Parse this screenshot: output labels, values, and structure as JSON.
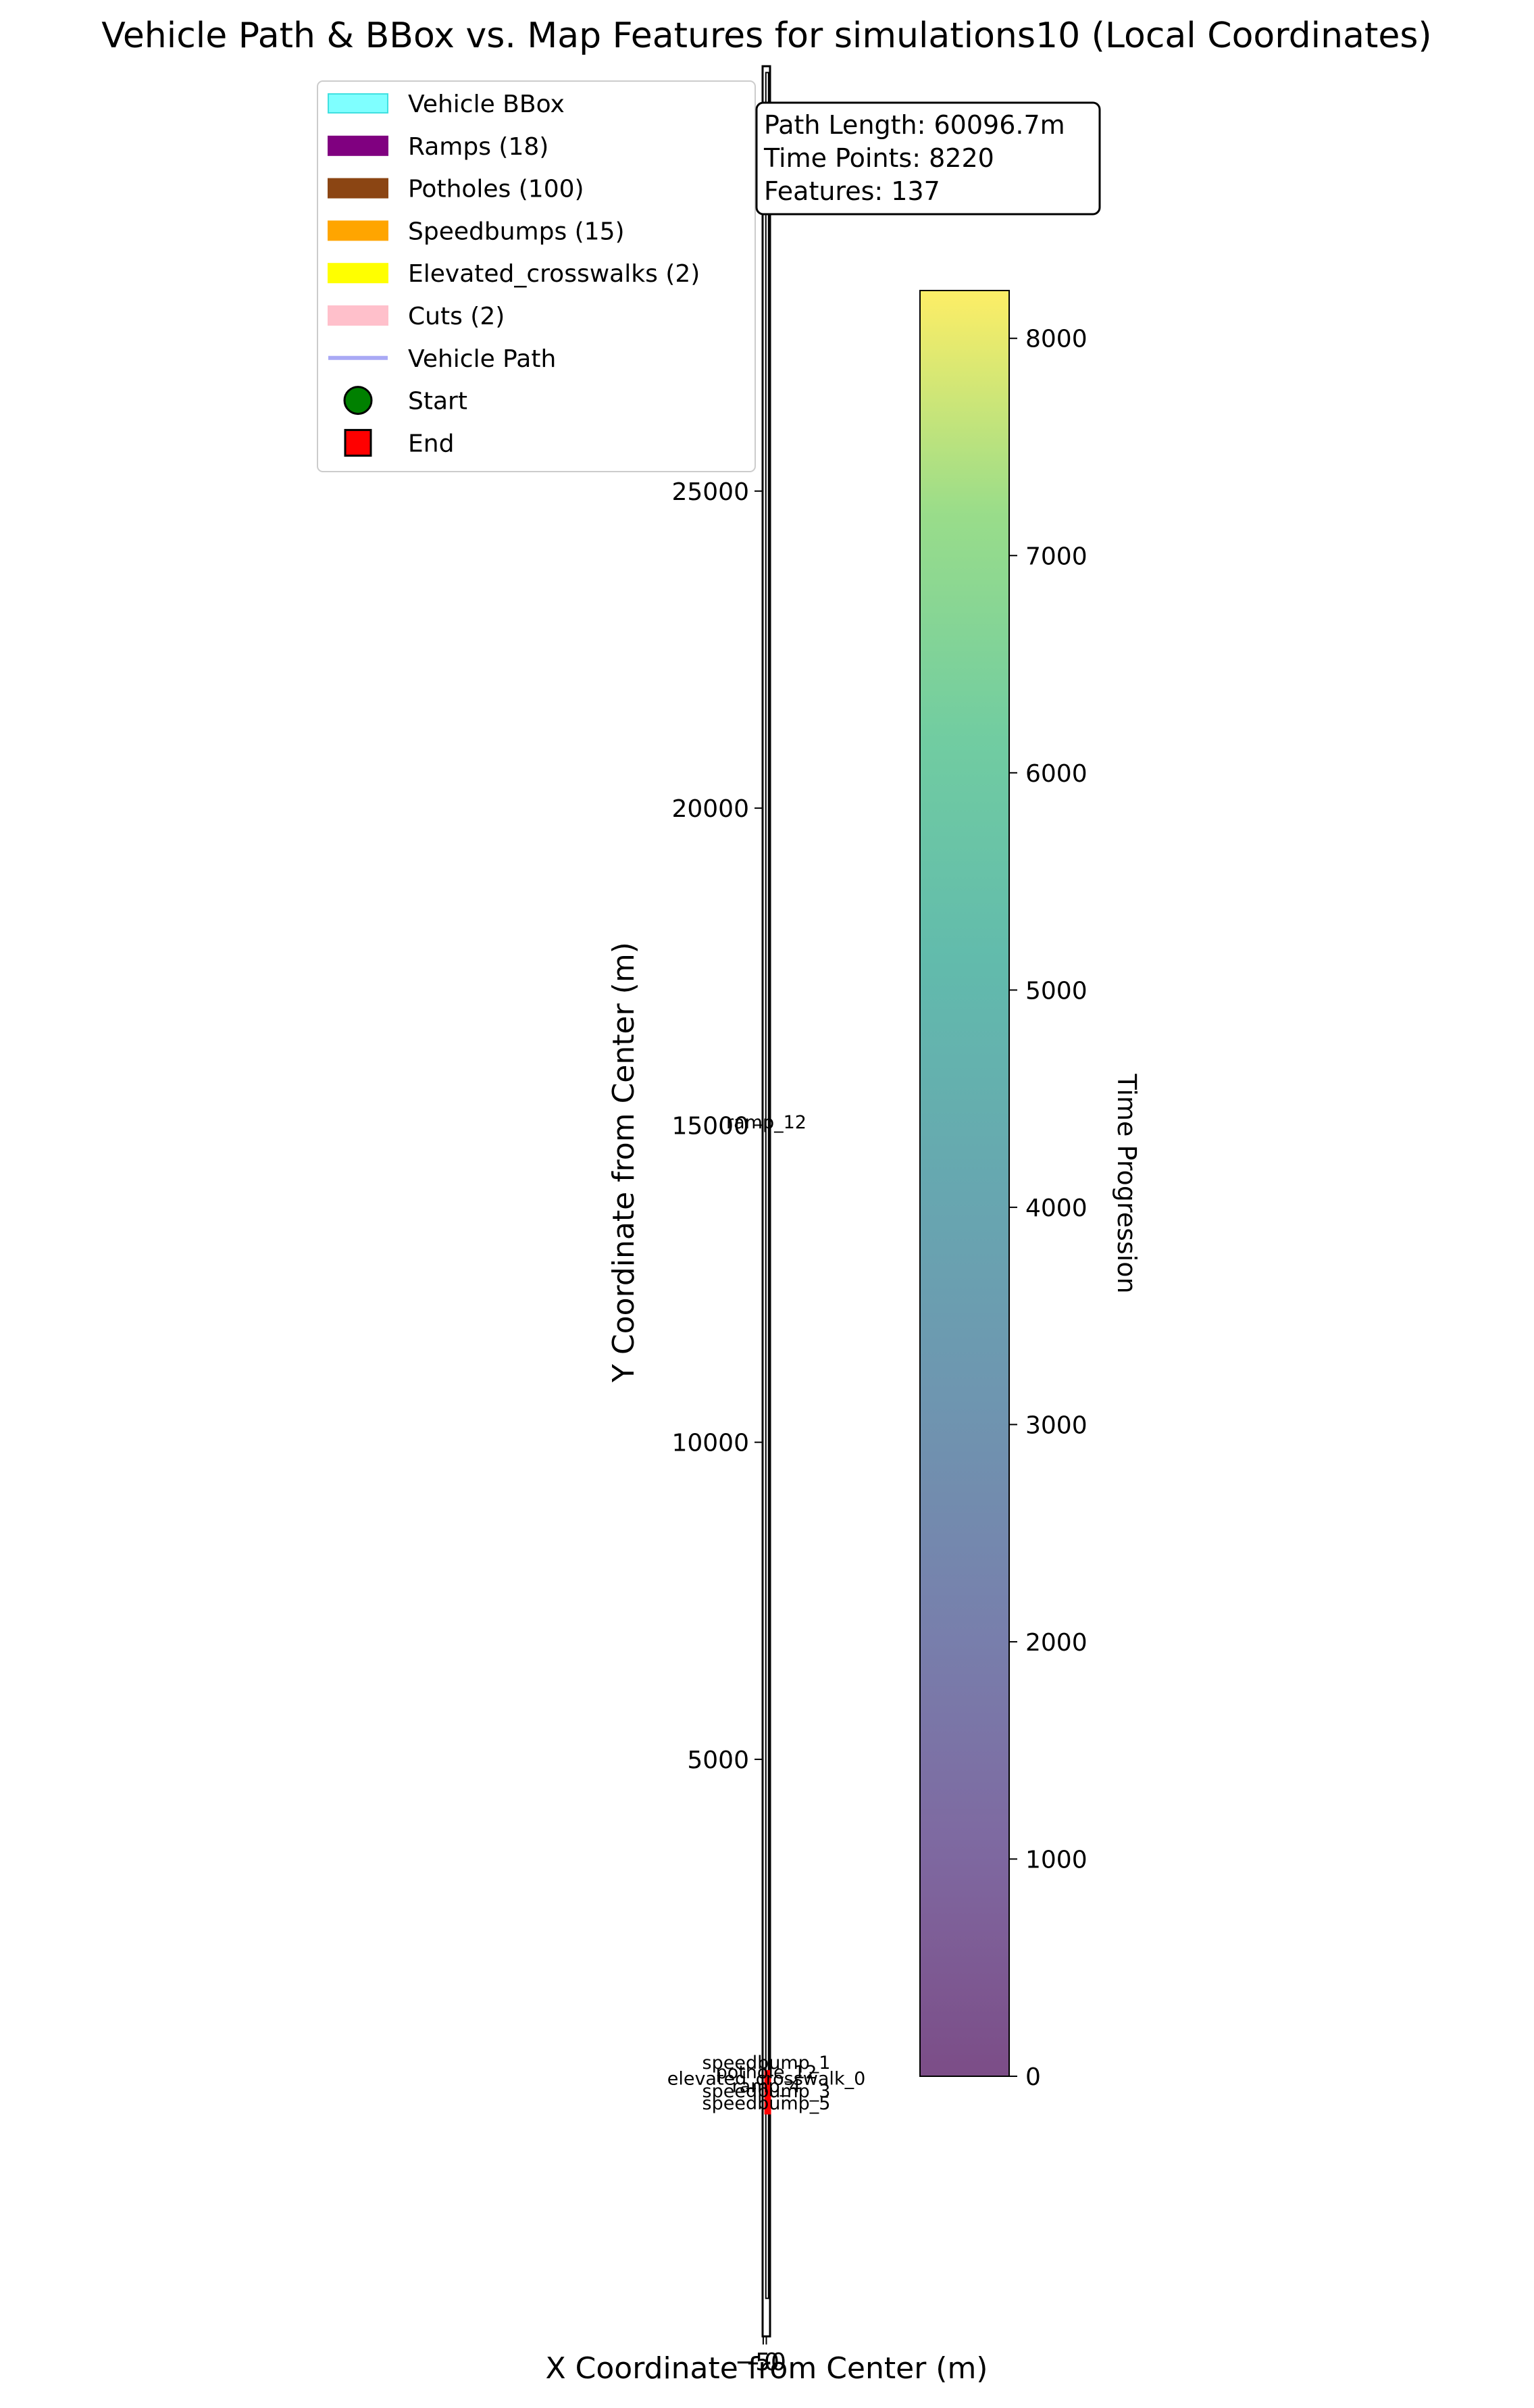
{
  "title": "Vehicle Path & BBox vs. Map Features for simulations10 (Local Coordinates)",
  "legend": [
    {
      "label": "Vehicle BBox",
      "type": "patch",
      "color": "#7fffff",
      "edge": "#40e0e0"
    },
    {
      "label": "Ramps (18)",
      "type": "patch",
      "color": "#800080",
      "edge": "#800080"
    },
    {
      "label": "Potholes (100)",
      "type": "patch",
      "color": "#8b4513",
      "edge": "#8b4513"
    },
    {
      "label": "Speedbumps (15)",
      "type": "patch",
      "color": "#ffa500",
      "edge": "#ffa500"
    },
    {
      "label": "Elevated_crosswalks (2)",
      "type": "patch",
      "color": "#ffff00",
      "edge": "#ffff00"
    },
    {
      "label": "Cuts (2)",
      "type": "patch",
      "color": "#ffc0cb",
      "edge": "#ffc0cb"
    },
    {
      "label": "Vehicle Path",
      "type": "line",
      "color": "#a9a9f5"
    },
    {
      "label": "Start",
      "type": "circle",
      "color": "#008000"
    },
    {
      "label": "End",
      "type": "square",
      "color": "#ff0000"
    }
  ],
  "stats": [
    "Path Length: 60096.7m",
    "Time Points: 8220",
    "Features: 137"
  ],
  "colorbar": {
    "label": "Time Progression",
    "min": 0,
    "max": 8220,
    "ticks": [
      0,
      1000,
      2000,
      3000,
      4000,
      5000,
      6000,
      7000,
      8000
    ],
    "colormap": "viridis",
    "alpha": 0.7
  },
  "chart_data": {
    "type": "scatter",
    "title": "Vehicle Path & BBox vs. Map Features for simulations10 (Local Coordinates)",
    "xlabel": "X Coordinate from Center (m)",
    "ylabel": "Y Coordinate from Center (m)",
    "xlim": [
      -60,
      60
    ],
    "ylim": [
      -4100,
      31700
    ],
    "x_ticks": [
      -50,
      0
    ],
    "x_tick_labels": [
      "−50",
      "0"
    ],
    "y_ticks": [
      5000,
      10000,
      15000,
      20000,
      25000,
      30000
    ],
    "y_tick_labels": [
      "5000",
      "10000",
      "15000",
      "20000",
      "25000",
      "30000"
    ],
    "grid": false,
    "legend_position": "upper-left",
    "vehicle_bbox": {
      "x": [
        -8,
        8
      ],
      "y": [
        -3500,
        31600
      ]
    },
    "feature_cluster": {
      "x": [
        -10,
        10
      ],
      "y": [
        -600,
        100
      ],
      "color": "#ff0000"
    },
    "feature_labels": [
      {
        "text": "ramp_12",
        "x": 0,
        "y": 14950
      },
      {
        "text": "elevated_crosswalk_0",
        "x": 0,
        "y": -130
      },
      {
        "text": "speedbump_5",
        "x": 0,
        "y": -520
      },
      {
        "text": "speedbump_3",
        "x": 0,
        "y": -330
      },
      {
        "text": "speedbump_1",
        "x": 0,
        "y": 120
      },
      {
        "text": "pothole_12",
        "x": 0,
        "y": -30
      },
      {
        "text": "ramp_4",
        "x": 0,
        "y": -250
      }
    ],
    "counts": {
      "ramps": 18,
      "potholes": 100,
      "speedbumps": 15,
      "elevated_crosswalks": 2,
      "cuts": 2
    }
  }
}
